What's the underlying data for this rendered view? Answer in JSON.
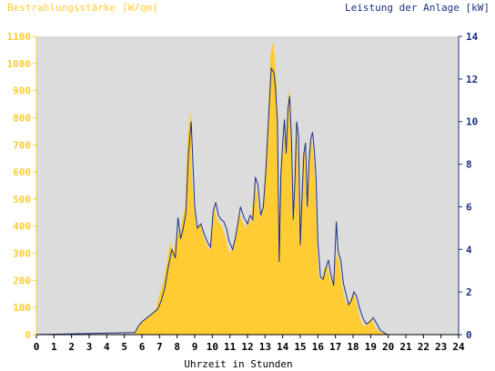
{
  "chart_data": {
    "type": "area",
    "left_axis_title": "Bestrahlungsstärke [W/qm]",
    "right_axis_title": "Leistung der Anlage [kW]",
    "xlabel": "Uhrzeit in Stunden",
    "xlim": [
      0,
      24
    ],
    "ylim_left": [
      0,
      1100
    ],
    "ylim_right": [
      0,
      14
    ],
    "x_ticks": [
      "0",
      "1",
      "2",
      "3",
      "4",
      "5",
      "6",
      "7",
      "8",
      "9",
      "10",
      "11",
      "12",
      "13",
      "14",
      "15",
      "16",
      "17",
      "18",
      "19",
      "20",
      "21",
      "22",
      "23",
      "24"
    ],
    "y_left_ticks": [
      "0",
      "100",
      "200",
      "300",
      "400",
      "500",
      "600",
      "700",
      "800",
      "900",
      "1000",
      "1100"
    ],
    "y_right_ticks": [
      "0",
      "2",
      "4",
      "6",
      "8",
      "10",
      "12",
      "14"
    ],
    "colors": {
      "irradiance_fill": "#ffcc33",
      "power_line": "#1a2f80",
      "plot_background": "#dcdcdc",
      "left_axis_text": "#ffcc33",
      "right_axis_text": "#1a2f80"
    },
    "series": [
      {
        "axis": "left",
        "style": "filled-area",
        "x": [
          0,
          5.5,
          5.7,
          5.9,
          6.2,
          6.5,
          6.8,
          7.0,
          7.2,
          7.4,
          7.6,
          7.8,
          8.0,
          8.15,
          8.3,
          8.45,
          8.6,
          8.75,
          8.85,
          8.95,
          9.1,
          9.3,
          9.5,
          9.7,
          9.85,
          10.0,
          10.1,
          10.25,
          10.4,
          10.55,
          10.7,
          10.85,
          11.0,
          11.2,
          11.35,
          11.5,
          11.7,
          11.9,
          12.05,
          12.2,
          12.4,
          12.55,
          12.7,
          12.85,
          13.0,
          13.15,
          13.3,
          13.45,
          13.55,
          13.65,
          13.75,
          13.85,
          13.95,
          14.05,
          14.15,
          14.25,
          14.35,
          14.45,
          14.55,
          14.65,
          14.75,
          14.85,
          14.95,
          15.05,
          15.15,
          15.25,
          15.35,
          15.45,
          15.55,
          15.65,
          15.75,
          15.85,
          15.95,
          16.05,
          16.2,
          16.35,
          16.5,
          16.65,
          16.8,
          16.95,
          17.1,
          17.2,
          17.35,
          17.5,
          17.65,
          17.8,
          17.95,
          18.1,
          18.25,
          18.4,
          18.6,
          18.8,
          19.0,
          19.2,
          19.4,
          19.6,
          19.8,
          20.0,
          24
        ],
        "y": [
          0,
          0,
          15,
          45,
          60,
          75,
          95,
          150,
          190,
          260,
          340,
          300,
          390,
          360,
          430,
          470,
          740,
          830,
          560,
          470,
          390,
          410,
          360,
          330,
          310,
          440,
          470,
          430,
          410,
          400,
          370,
          330,
          300,
          330,
          380,
          450,
          420,
          390,
          430,
          410,
          560,
          520,
          430,
          460,
          600,
          780,
          1030,
          1080,
          1030,
          920,
          310,
          580,
          690,
          770,
          660,
          820,
          910,
          740,
          430,
          560,
          780,
          720,
          320,
          500,
          660,
          700,
          450,
          620,
          700,
          720,
          650,
          560,
          340,
          210,
          200,
          240,
          260,
          220,
          180,
          260,
          300,
          270,
          190,
          140,
          110,
          120,
          150,
          140,
          100,
          60,
          30,
          40,
          60,
          35,
          15,
          8,
          3,
          0,
          0
        ]
      },
      {
        "axis": "right",
        "style": "line",
        "x": [
          0,
          5.6,
          5.8,
          6.0,
          6.3,
          6.6,
          6.9,
          7.1,
          7.3,
          7.5,
          7.7,
          7.9,
          8.05,
          8.2,
          8.35,
          8.5,
          8.65,
          8.8,
          8.9,
          9.0,
          9.15,
          9.35,
          9.55,
          9.75,
          9.9,
          10.05,
          10.2,
          10.35,
          10.5,
          10.65,
          10.8,
          10.95,
          11.15,
          11.3,
          11.45,
          11.6,
          11.8,
          12.0,
          12.15,
          12.3,
          12.45,
          12.6,
          12.75,
          12.9,
          13.05,
          13.2,
          13.35,
          13.5,
          13.6,
          13.7,
          13.8,
          13.9,
          14.0,
          14.1,
          14.2,
          14.3,
          14.4,
          14.5,
          14.6,
          14.7,
          14.8,
          14.9,
          15.0,
          15.1,
          15.2,
          15.3,
          15.4,
          15.5,
          15.6,
          15.7,
          15.8,
          15.9,
          16.0,
          16.15,
          16.3,
          16.45,
          16.6,
          16.75,
          16.9,
          17.05,
          17.15,
          17.3,
          17.45,
          17.6,
          17.75,
          17.9,
          18.05,
          18.2,
          18.35,
          18.55,
          18.75,
          18.95,
          19.15,
          19.35,
          19.55,
          19.75,
          19.95,
          24
        ],
        "y": [
          0,
          0.1,
          0.4,
          0.6,
          0.8,
          1.0,
          1.2,
          1.6,
          2.2,
          3.2,
          4.0,
          3.6,
          5.5,
          4.5,
          5.0,
          5.7,
          8.5,
          10.0,
          8.0,
          6.0,
          5.0,
          5.2,
          4.7,
          4.3,
          4.1,
          5.8,
          6.2,
          5.6,
          5.4,
          5.3,
          5.0,
          4.4,
          4.0,
          4.5,
          5.2,
          6.0,
          5.5,
          5.2,
          5.6,
          5.4,
          7.4,
          7.0,
          5.6,
          6.0,
          7.8,
          10.2,
          12.5,
          12.3,
          11.5,
          10.0,
          3.4,
          7.5,
          9.0,
          10.1,
          8.5,
          10.6,
          11.2,
          9.2,
          5.4,
          7.3,
          10.0,
          9.3,
          4.2,
          6.4,
          8.5,
          9.0,
          6.0,
          8.2,
          9.2,
          9.5,
          8.6,
          7.3,
          4.4,
          2.7,
          2.6,
          3.1,
          3.5,
          2.8,
          2.3,
          5.3,
          3.9,
          3.5,
          2.4,
          1.9,
          1.4,
          1.6,
          2.0,
          1.8,
          1.3,
          0.8,
          0.5,
          0.6,
          0.8,
          0.5,
          0.2,
          0.1,
          0,
          0
        ]
      }
    ]
  }
}
